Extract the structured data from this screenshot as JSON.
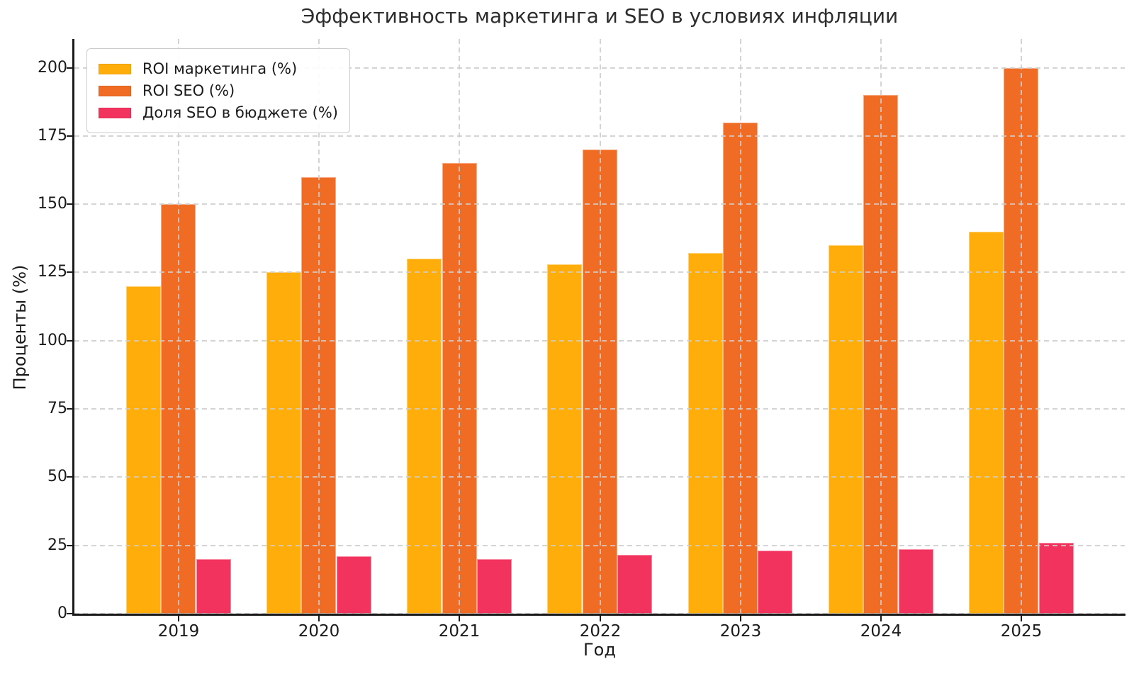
{
  "chart_data": {
    "type": "bar",
    "title": "Эффективность маркетинга и SEO в условиях инфляции",
    "xlabel": "Год",
    "ylabel": "Проценты (%)",
    "categories": [
      "2019",
      "2020",
      "2021",
      "2022",
      "2023",
      "2024",
      "2025"
    ],
    "series": [
      {
        "name": "ROI маркетинга (%)",
        "color": "#FFAD0A",
        "values": [
          120,
          125,
          130,
          128,
          132,
          135,
          140
        ]
      },
      {
        "name": "ROI SEO (%)",
        "color": "#F06B23",
        "values": [
          150,
          160,
          165,
          170,
          180,
          190,
          200
        ]
      },
      {
        "name": "Доля SEO в бюджете (%)",
        "color": "#F2335D",
        "values": [
          20,
          21,
          20,
          21.5,
          23,
          23.5,
          26
        ]
      }
    ],
    "yticks": [
      0,
      25,
      50,
      75,
      100,
      125,
      150,
      175,
      200
    ],
    "ylim": [
      0,
      210
    ],
    "grid": true,
    "grid_style": "dashed",
    "grid_color": "#cdcdcd",
    "legend_position": "upper-left",
    "background_color": "#ffffff",
    "text_color": "#1a1a1a"
  }
}
